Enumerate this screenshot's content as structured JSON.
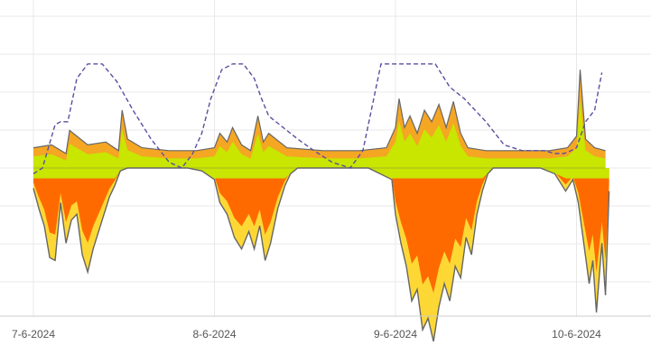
{
  "chart_data": {
    "type": "area",
    "title": "",
    "xlabel": "",
    "ylabel": "",
    "x_ticks": [
      "7-6-2024",
      "8-6-2024",
      "9-6-2024",
      "10-6-2024"
    ],
    "grid": true,
    "legend": "none",
    "colors": {
      "top_band_orange": "#f5a623",
      "top_band_green": "#c8e600",
      "lower_orange": "#ff6a00",
      "lower_yellow": "#fdd835",
      "outline": "#666666",
      "dashed_line": "#5a4fa0",
      "grid": "#e8e8e8",
      "axis": "#cccccc"
    },
    "series": [
      {
        "type": "dashed-line",
        "x": [
          0.0,
          0.05,
          0.12,
          0.15,
          0.19,
          0.24,
          0.3,
          0.38,
          0.46,
          0.55,
          0.65,
          0.75,
          0.82,
          0.88,
          0.93,
          0.98,
          1.04,
          1.1,
          1.16,
          1.22,
          1.26,
          1.3,
          1.38,
          1.46,
          1.55,
          1.65,
          1.75,
          1.82,
          1.88,
          1.92,
          1.97,
          2.02,
          2.07,
          2.12,
          2.18,
          2.22,
          2.26,
          2.3,
          2.38,
          2.5,
          2.6,
          2.7,
          2.76,
          2.82,
          2.88,
          2.93,
          2.97,
          3.0,
          3.05,
          3.1,
          3.14
        ],
        "y": [
          -0.1,
          0.0,
          0.75,
          0.8,
          0.8,
          1.55,
          1.8,
          1.8,
          1.5,
          1.0,
          0.5,
          0.1,
          0.0,
          0.25,
          0.6,
          1.2,
          1.7,
          1.8,
          1.8,
          1.55,
          1.2,
          0.9,
          0.7,
          0.5,
          0.3,
          0.1,
          0.0,
          0.3,
          1.2,
          1.8,
          1.8,
          1.8,
          1.8,
          1.8,
          1.8,
          1.8,
          1.6,
          1.4,
          1.2,
          0.8,
          0.4,
          0.3,
          0.3,
          0.3,
          0.25,
          0.25,
          0.3,
          0.35,
          0.8,
          1.0,
          1.65
        ]
      },
      {
        "type": "area-outline",
        "x": [
          0.0,
          0.03,
          0.06,
          0.09,
          0.12,
          0.15,
          0.18,
          0.21,
          0.24,
          0.27,
          0.3,
          0.33,
          0.36,
          0.39,
          0.42,
          0.45,
          0.48,
          0.52,
          0.6,
          0.72,
          0.85,
          0.93,
          1.0,
          1.03,
          1.07,
          1.11,
          1.15,
          1.19,
          1.22,
          1.25,
          1.28,
          1.31,
          1.35,
          1.39,
          1.42,
          1.46,
          1.5,
          1.56,
          1.65,
          1.75,
          1.85,
          1.98,
          2.0,
          2.03,
          2.06,
          2.09,
          2.12,
          2.15,
          2.18,
          2.21,
          2.24,
          2.27,
          2.3,
          2.33,
          2.36,
          2.39,
          2.42,
          2.45,
          2.48,
          2.51,
          2.54,
          2.58,
          2.65,
          2.72,
          2.8,
          2.88,
          2.94,
          2.98,
          3.01,
          3.04,
          3.07,
          3.09,
          3.11,
          3.14,
          3.16,
          3.18
        ],
        "y": [
          -0.35,
          -0.7,
          -1.0,
          -1.55,
          -1.6,
          -0.6,
          -1.3,
          -0.9,
          -0.8,
          -1.5,
          -1.8,
          -1.4,
          -1.1,
          -0.8,
          -0.5,
          -0.3,
          -0.05,
          0.0,
          0.0,
          0.0,
          0.0,
          -0.05,
          -0.2,
          -0.6,
          -0.8,
          -1.2,
          -1.4,
          -1.1,
          -1.4,
          -1.0,
          -1.6,
          -1.3,
          -0.7,
          -0.3,
          -0.1,
          0.0,
          0.0,
          0.0,
          0.0,
          0.0,
          0.0,
          -0.2,
          -0.8,
          -1.3,
          -1.7,
          -2.3,
          -2.1,
          -2.8,
          -2.6,
          -3.0,
          -2.4,
          -2.0,
          -2.3,
          -1.7,
          -1.9,
          -1.2,
          -1.5,
          -0.8,
          -0.4,
          -0.1,
          0.0,
          0.0,
          0.0,
          0.0,
          0.0,
          -0.1,
          -0.4,
          -0.2,
          -0.6,
          -1.3,
          -2.0,
          -1.6,
          -2.5,
          -1.3,
          -2.2,
          -0.4
        ]
      },
      {
        "type": "top-band-outline",
        "x": [
          0.0,
          0.1,
          0.18,
          0.2,
          0.3,
          0.4,
          0.47,
          0.49,
          0.52,
          0.6,
          0.75,
          0.9,
          1.0,
          1.03,
          1.07,
          1.1,
          1.15,
          1.2,
          1.24,
          1.27,
          1.3,
          1.4,
          1.6,
          1.8,
          1.95,
          2.0,
          2.02,
          2.05,
          2.08,
          2.12,
          2.16,
          2.2,
          2.24,
          2.28,
          2.32,
          2.36,
          2.4,
          2.5,
          2.7,
          2.85,
          2.95,
          3.0,
          3.02,
          3.05,
          3.1,
          3.16
        ],
        "y": [
          0.35,
          0.4,
          0.25,
          0.65,
          0.4,
          0.45,
          0.3,
          1.0,
          0.5,
          0.35,
          0.3,
          0.3,
          0.35,
          0.6,
          0.45,
          0.7,
          0.4,
          0.3,
          0.9,
          0.45,
          0.6,
          0.35,
          0.3,
          0.3,
          0.35,
          0.7,
          1.2,
          0.7,
          0.9,
          0.6,
          1.0,
          0.8,
          1.1,
          0.7,
          1.15,
          0.6,
          0.35,
          0.3,
          0.3,
          0.3,
          0.35,
          0.55,
          1.7,
          0.5,
          0.35,
          0.3
        ]
      }
    ]
  }
}
